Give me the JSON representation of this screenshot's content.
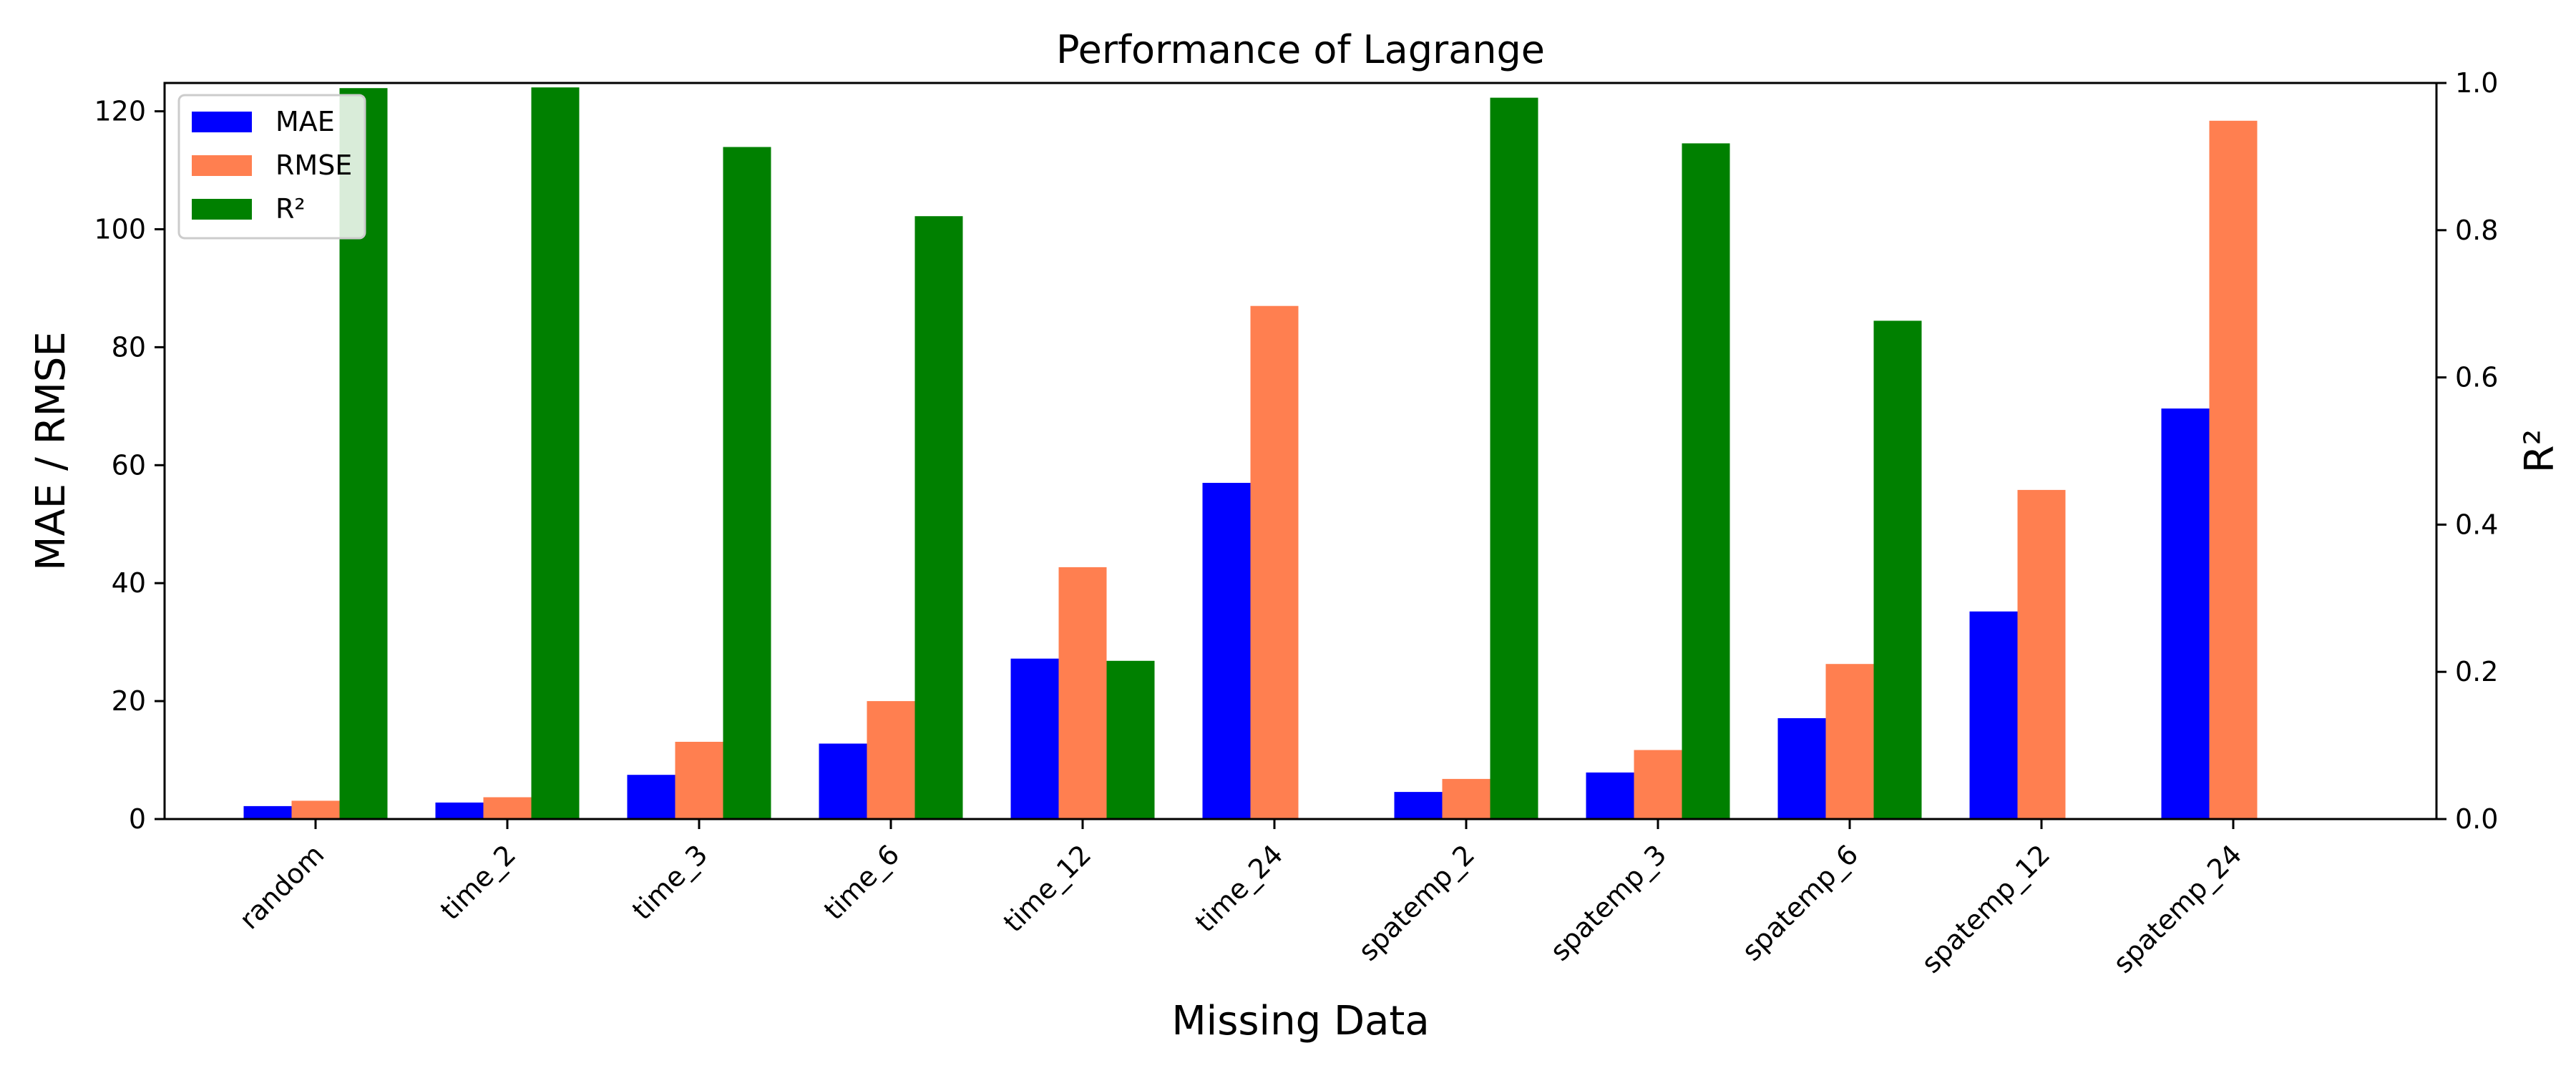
{
  "chart_data": {
    "type": "bar",
    "title": "Performance of Lagrange",
    "xlabel": "Missing Data",
    "ylabel": "MAE / RMSE",
    "y2label": "R²",
    "categories": [
      "random",
      "time_2",
      "time_3",
      "time_6",
      "time_12",
      "time_24",
      "spatemp_2",
      "spatemp_3",
      "spatemp_6",
      "spatemp_12",
      "spatemp_24"
    ],
    "series": [
      {
        "name": "MAE",
        "axis": "left",
        "color": "#0000ff",
        "values": [
          2.2,
          2.8,
          7.5,
          12.8,
          27.2,
          57.0,
          4.6,
          7.9,
          17.1,
          35.2,
          69.6
        ]
      },
      {
        "name": "RMSE",
        "axis": "left",
        "color": "#ff7f50",
        "values": [
          3.1,
          3.7,
          13.1,
          20.0,
          42.7,
          87.0,
          6.8,
          11.7,
          26.3,
          55.8,
          118.4
        ]
      },
      {
        "name": "R²",
        "axis": "right",
        "color": "#008000",
        "values": [
          0.993,
          0.994,
          0.913,
          0.819,
          0.215,
          null,
          0.98,
          0.918,
          0.677,
          null,
          null
        ]
      }
    ],
    "ylim": [
      0,
      124.8
    ],
    "y2lim": [
      0,
      1.0
    ],
    "yticks": [
      0,
      20,
      40,
      60,
      80,
      100,
      120
    ],
    "y2ticks": [
      0.0,
      0.2,
      0.4,
      0.6,
      0.8,
      1.0
    ],
    "y2tick_labels": [
      "0.0",
      "0.2",
      "0.4",
      "0.6",
      "0.8",
      "1.0"
    ],
    "legend_position": "top-left",
    "grid": false
  }
}
